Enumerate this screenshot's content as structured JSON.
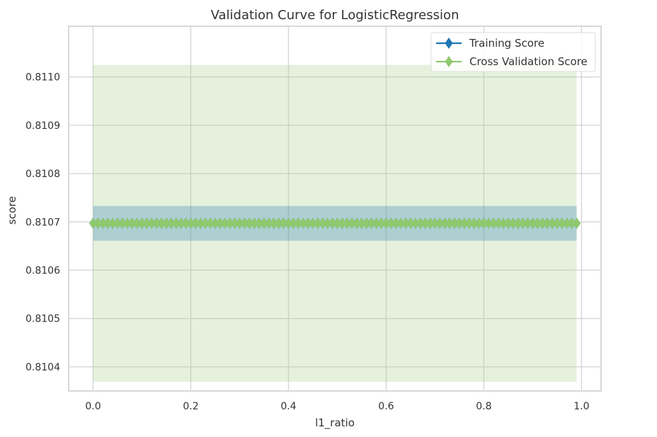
{
  "chart_data": {
    "type": "line",
    "title": "Validation Curve for LogisticRegression",
    "xlabel": "l1_ratio",
    "ylabel": "score",
    "xlim": [
      -0.05,
      1.04
    ],
    "ylim": [
      0.81035,
      0.811105
    ],
    "x_ticks": [
      "0.0",
      "0.2",
      "0.4",
      "0.6",
      "0.8",
      "1.0"
    ],
    "x_tick_values": [
      0.0,
      0.2,
      0.4,
      0.6,
      0.8,
      1.0
    ],
    "y_ticks": [
      "0.8104",
      "0.8105",
      "0.8106",
      "0.8107",
      "0.8108",
      "0.8109",
      "0.8110"
    ],
    "y_tick_values": [
      0.8104,
      0.8105,
      0.8106,
      0.8107,
      0.8108,
      0.8109,
      0.811
    ],
    "grid": true,
    "legend_position": "top-right",
    "x": {
      "start": 0.0,
      "end": 0.99,
      "step": 0.01
    },
    "series": [
      {
        "name": "Training Score",
        "color": "#1f77b4",
        "marker": "diamond",
        "value": 0.810697,
        "band": [
          0.810661,
          0.810733
        ],
        "band_color": "#1f77b4"
      },
      {
        "name": "Cross Validation Score",
        "color": "#8fc96e",
        "marker": "diamond",
        "value": 0.810697,
        "band": [
          0.810369,
          0.811025
        ],
        "band_color": "#a8cf8f"
      }
    ]
  }
}
